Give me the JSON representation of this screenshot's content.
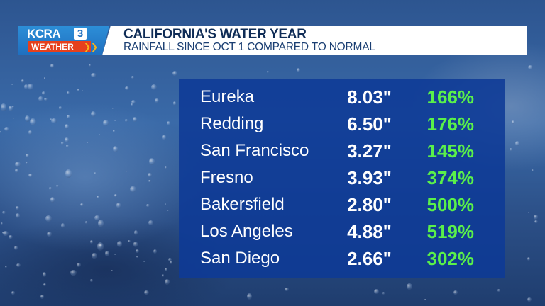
{
  "logo": {
    "brand": "KCRA",
    "channel": "3",
    "weather_label": "WEATHER",
    "accent": "#1f6fbf",
    "weather_color": "#e6401c"
  },
  "header": {
    "title": "CALIFORNIA'S WATER YEAR",
    "subtitle": "RAINFALL SINCE OCT 1 COMPARED TO NORMAL"
  },
  "colors": {
    "panel": "#0e3a96",
    "percent": "#5af04a",
    "text": "#ffffff"
  },
  "rows": [
    {
      "city": "Eureka",
      "rainfall": "8.03\"",
      "percent": "166%"
    },
    {
      "city": "Redding",
      "rainfall": "6.50\"",
      "percent": "176%"
    },
    {
      "city": "San Francisco",
      "rainfall": "3.27\"",
      "percent": "145%"
    },
    {
      "city": "Fresno",
      "rainfall": "3.93\"",
      "percent": "374%"
    },
    {
      "city": "Bakersfield",
      "rainfall": "2.80\"",
      "percent": "500%"
    },
    {
      "city": "Los Angeles",
      "rainfall": "4.88\"",
      "percent": "519%"
    },
    {
      "city": "San Diego",
      "rainfall": "2.66\"",
      "percent": "302%"
    }
  ]
}
